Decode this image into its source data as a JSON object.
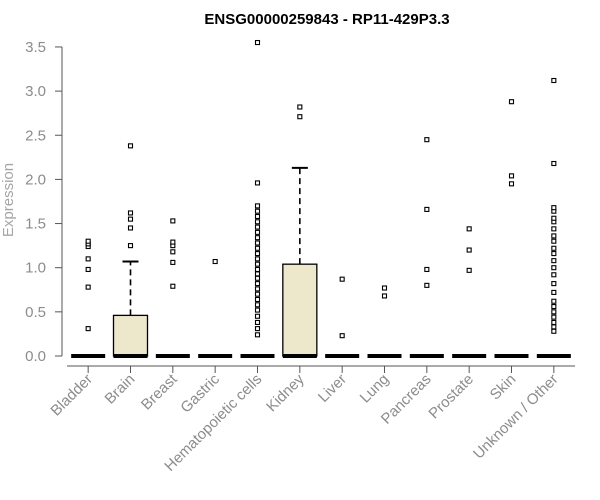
{
  "chart_data": {
    "type": "box",
    "title": "ENSG00000259843 - RP11-429P3.3",
    "ylabel": "Expression",
    "xlabel": "",
    "ylim": [
      0,
      3.6
    ],
    "yticks": [
      "0.0",
      "0.5",
      "1.0",
      "1.5",
      "2.0",
      "2.5",
      "3.0",
      "3.5"
    ],
    "box_fill": "#ede7cc",
    "grid": false,
    "categories": [
      "Bladder",
      "Brain",
      "Breast",
      "Gastric",
      "Hematopoietic cells",
      "Kidney",
      "Liver",
      "Lung",
      "Pancreas",
      "Prostate",
      "Skin",
      "Unknown / Other"
    ],
    "boxes": [
      {
        "q1": 0,
        "median": 0,
        "q3": 0,
        "whisker_low": 0,
        "whisker_high": 0,
        "outliers": [
          0.31,
          0.78,
          0.98,
          1.1,
          1.24,
          1.27,
          1.3
        ]
      },
      {
        "q1": 0,
        "median": 0,
        "q3": 0.46,
        "whisker_low": 0,
        "whisker_high": 1.07,
        "outliers": [
          1.25,
          1.45,
          1.55,
          1.62,
          2.38
        ]
      },
      {
        "q1": 0,
        "median": 0,
        "q3": 0,
        "whisker_low": 0,
        "whisker_high": 0,
        "outliers": [
          0.79,
          1.06,
          1.18,
          1.25,
          1.29,
          1.53
        ]
      },
      {
        "q1": 0,
        "median": 0,
        "q3": 0,
        "whisker_low": 0,
        "whisker_high": 0,
        "outliers": [
          1.07
        ]
      },
      {
        "q1": 0,
        "median": 0,
        "q3": 0,
        "whisker_low": 0,
        "whisker_high": 0,
        "outliers": [
          0.24,
          0.31,
          0.38,
          0.45,
          0.52,
          0.58,
          0.64,
          0.7,
          0.76,
          0.82,
          0.88,
          0.93,
          0.98,
          1.04,
          1.1,
          1.16,
          1.22,
          1.28,
          1.34,
          1.4,
          1.46,
          1.52,
          1.58,
          1.64,
          1.7,
          1.96,
          3.55
        ]
      },
      {
        "q1": 0,
        "median": 0,
        "q3": 1.04,
        "whisker_low": 0,
        "whisker_high": 2.13,
        "outliers": [
          2.71,
          2.82
        ]
      },
      {
        "q1": 0,
        "median": 0,
        "q3": 0,
        "whisker_low": 0,
        "whisker_high": 0,
        "outliers": [
          0.23,
          0.87
        ]
      },
      {
        "q1": 0,
        "median": 0,
        "q3": 0,
        "whisker_low": 0,
        "whisker_high": 0,
        "outliers": [
          0.68,
          0.77
        ]
      },
      {
        "q1": 0,
        "median": 0,
        "q3": 0,
        "whisker_low": 0,
        "whisker_high": 0,
        "outliers": [
          0.8,
          0.98,
          1.66,
          2.45
        ]
      },
      {
        "q1": 0,
        "median": 0,
        "q3": 0,
        "whisker_low": 0,
        "whisker_high": 0,
        "outliers": [
          0.97,
          1.2,
          1.44
        ]
      },
      {
        "q1": 0,
        "median": 0,
        "q3": 0,
        "whisker_low": 0,
        "whisker_high": 0,
        "outliers": [
          1.95,
          2.04,
          2.88
        ]
      },
      {
        "q1": 0,
        "median": 0,
        "q3": 0,
        "whisker_low": 0,
        "whisker_high": 0,
        "outliers": [
          0.28,
          0.33,
          0.38,
          0.44,
          0.5,
          0.56,
          0.62,
          0.72,
          0.82,
          0.92,
          1.0,
          1.08,
          1.16,
          1.22,
          1.3,
          1.36,
          1.44,
          1.52,
          1.56,
          1.64,
          1.68,
          2.18,
          3.12
        ]
      }
    ]
  }
}
